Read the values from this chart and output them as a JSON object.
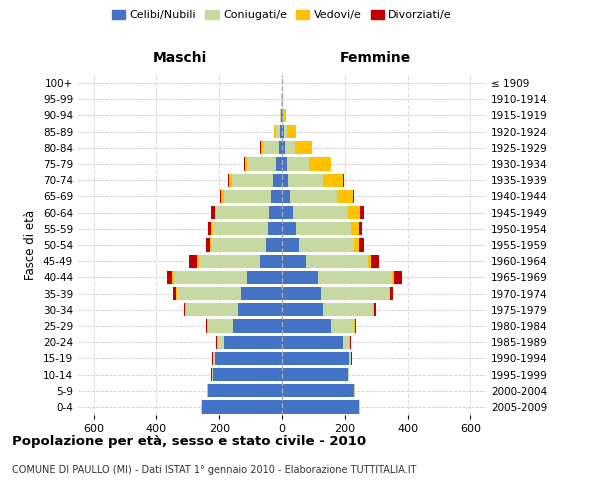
{
  "age_groups": [
    "0-4",
    "5-9",
    "10-14",
    "15-19",
    "20-24",
    "25-29",
    "30-34",
    "35-39",
    "40-44",
    "45-49",
    "50-54",
    "55-59",
    "60-64",
    "65-69",
    "70-74",
    "75-79",
    "80-84",
    "85-89",
    "90-94",
    "95-99",
    "100+"
  ],
  "birth_years": [
    "2005-2009",
    "2000-2004",
    "1995-1999",
    "1990-1994",
    "1985-1989",
    "1980-1984",
    "1975-1979",
    "1970-1974",
    "1965-1969",
    "1960-1964",
    "1955-1959",
    "1950-1954",
    "1945-1949",
    "1940-1944",
    "1935-1939",
    "1930-1934",
    "1925-1929",
    "1920-1924",
    "1915-1919",
    "1910-1914",
    "≤ 1909"
  ],
  "maschi": {
    "celibi": [
      255,
      235,
      220,
      215,
      185,
      155,
      140,
      130,
      110,
      70,
      50,
      45,
      40,
      35,
      30,
      20,
      10,
      5,
      2,
      1,
      0
    ],
    "coniugati": [
      2,
      2,
      3,
      5,
      20,
      80,
      165,
      205,
      235,
      195,
      175,
      175,
      170,
      150,
      130,
      90,
      50,
      15,
      3,
      1,
      0
    ],
    "vedovi": [
      1,
      1,
      1,
      1,
      2,
      3,
      3,
      3,
      5,
      5,
      5,
      5,
      5,
      8,
      10,
      8,
      8,
      5,
      1,
      0,
      0
    ],
    "divorziati": [
      0,
      0,
      1,
      1,
      2,
      3,
      5,
      8,
      15,
      25,
      12,
      10,
      10,
      5,
      3,
      2,
      1,
      0,
      0,
      0,
      0
    ]
  },
  "femmine": {
    "nubili": [
      245,
      230,
      210,
      215,
      195,
      155,
      130,
      125,
      115,
      75,
      55,
      45,
      35,
      25,
      20,
      15,
      10,
      5,
      2,
      1,
      0
    ],
    "coniugate": [
      2,
      2,
      3,
      5,
      20,
      75,
      160,
      215,
      235,
      200,
      175,
      175,
      175,
      150,
      110,
      70,
      30,
      10,
      3,
      1,
      0
    ],
    "vedove": [
      0,
      0,
      1,
      1,
      2,
      3,
      3,
      5,
      8,
      10,
      15,
      25,
      40,
      50,
      65,
      70,
      55,
      30,
      8,
      2,
      0
    ],
    "divorziate": [
      0,
      0,
      0,
      1,
      2,
      3,
      5,
      10,
      25,
      25,
      15,
      10,
      10,
      5,
      3,
      2,
      1,
      0,
      0,
      0,
      0
    ]
  },
  "colors": {
    "celibi_nubili": "#4472c4",
    "coniugati": "#c5d9a0",
    "vedovi": "#ffc000",
    "divorziati": "#c00000"
  },
  "xlim": 650,
  "title": "Popolazione per età, sesso e stato civile - 2010",
  "subtitle": "COMUNE DI PAULLO (MI) - Dati ISTAT 1° gennaio 2010 - Elaborazione TUTTITALIA.IT",
  "ylabel_left": "Fasce di età",
  "xlabel_maschi": "Maschi",
  "xlabel_femmine": "Femmine",
  "legend_labels": [
    "Celibi/Nubili",
    "Coniugati/e",
    "Vedovi/e",
    "Divorziati/e"
  ]
}
